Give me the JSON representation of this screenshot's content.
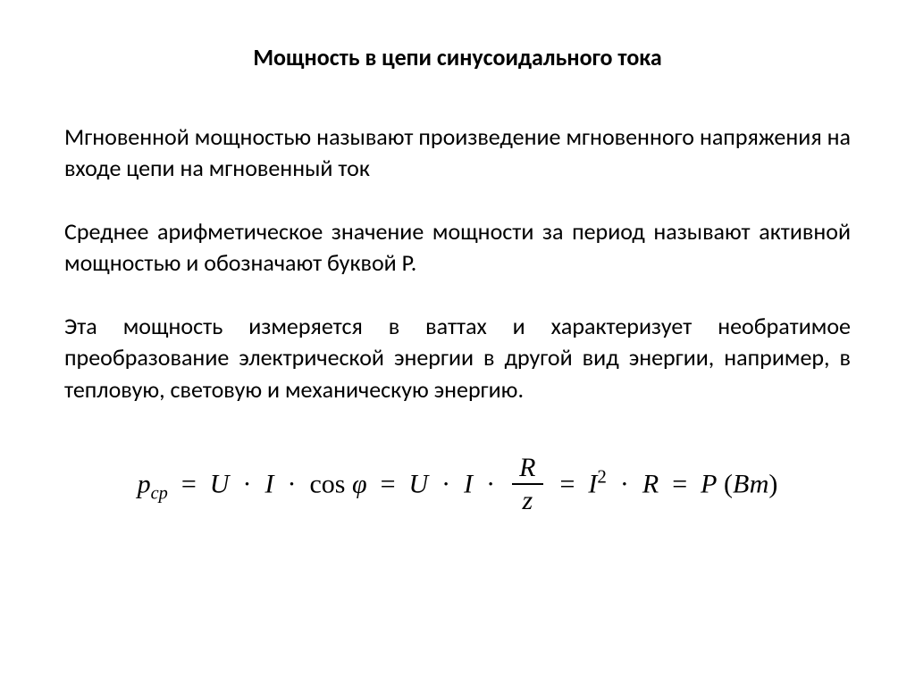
{
  "title": "Мощность в цепи синусоидального тока",
  "paragraphs": {
    "p1": "Мгновенной мощностью называют произведение мгновенного напряжения на входе цепи на мгновенный ток",
    "p2": "Среднее арифметическое значение мощности за период называют активной мощностью и обозначают буквой P.",
    "p3": "Эта мощность измеряется в ваттах и характеризует необратимое преобразование электрической энергии в другой вид энергии, например, в тепловую, световую и механическую энергию."
  },
  "formula": {
    "lhs_var": "p",
    "lhs_sub": "ср",
    "eq": "=",
    "term1_U": "U",
    "dot": "·",
    "term1_I": "I",
    "cos": "cos",
    "phi": "φ",
    "term2_U": "U",
    "term2_I": "I",
    "frac_num": "R",
    "frac_den": "z",
    "term3_I": "I",
    "term3_exp": "2",
    "term3_R": "R",
    "rhs_P": "P",
    "paren_open": "(",
    "unit": "Вт",
    "paren_close": ")"
  },
  "style": {
    "background_color": "#ffffff",
    "text_color": "#000000",
    "title_fontsize": 26,
    "body_fontsize": 26,
    "formula_fontsize": 30,
    "font_family_body": "Calibri, Arial, sans-serif",
    "font_family_formula": "Times New Roman, serif"
  }
}
